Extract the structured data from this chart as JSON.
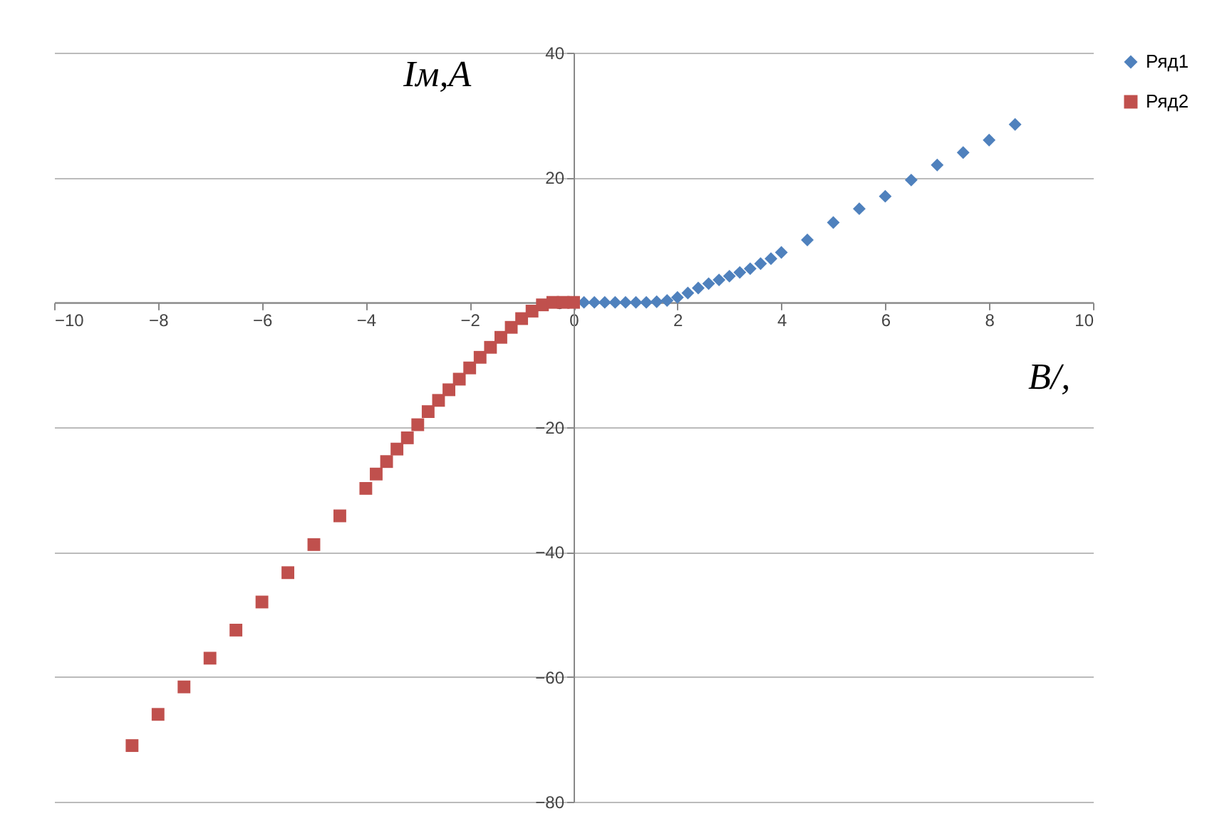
{
  "chart_data": {
    "type": "scatter",
    "xlabel": "B/,",
    "ylabel": "Iм,A",
    "xlim": [
      -10,
      10
    ],
    "xticks": [
      -10,
      -8,
      -6,
      -4,
      -2,
      0,
      2,
      4,
      6,
      8,
      10
    ],
    "ylim": [
      -80,
      40
    ],
    "yticks": [
      -80,
      -60,
      -40,
      -20,
      0,
      20,
      40
    ],
    "grid": "y",
    "legend": "right",
    "series": [
      {
        "name": "Ряд1",
        "color": "#4f81bd",
        "marker": "diamond",
        "x": [
          0.2,
          0.4,
          0.6,
          0.8,
          1.0,
          1.2,
          1.4,
          1.6,
          1.8,
          2.0,
          2.2,
          2.4,
          2.6,
          2.8,
          3.0,
          3.2,
          3.4,
          3.6,
          3.8,
          4.0,
          4.5,
          5.0,
          5.5,
          6.0,
          6.5,
          7.0,
          7.5,
          8.0,
          8.5
        ],
        "values": [
          0,
          0,
          0,
          0,
          0,
          0,
          0,
          0.1,
          0.3,
          0.8,
          1.5,
          2.3,
          3.0,
          3.6,
          4.2,
          4.8,
          5.4,
          6.2,
          7.0,
          8.0,
          10,
          12.8,
          15,
          17,
          19.6,
          22,
          24,
          26,
          28.5
        ]
      },
      {
        "name": "Ряд2",
        "color": "#c0504d",
        "marker": "square",
        "x": [
          -8.5,
          -8,
          -7.5,
          -7,
          -6.5,
          -6,
          -5.5,
          -5,
          -4.5,
          -4.0,
          -3.8,
          -3.6,
          -3.4,
          -3.2,
          -3.0,
          -2.8,
          -2.6,
          -2.4,
          -2.2,
          -2.0,
          -1.8,
          -1.6,
          -1.4,
          -1.2,
          -1.0,
          -0.8,
          -0.6,
          -0.4,
          -0.2,
          0
        ],
        "values": [
          -71,
          -66,
          -61.6,
          -57,
          -52.5,
          -48,
          -43.3,
          -38.8,
          -34.2,
          -29.8,
          -27.5,
          -25.5,
          -23.5,
          -21.7,
          -19.6,
          -17.5,
          -15.7,
          -14,
          -12.3,
          -10.5,
          -8.8,
          -7.2,
          -5.6,
          -4,
          -2.6,
          -1.4,
          -0.4,
          0,
          0,
          0
        ]
      }
    ]
  }
}
